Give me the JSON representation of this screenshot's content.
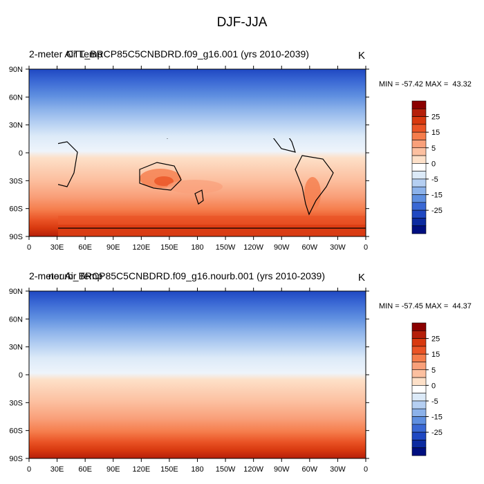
{
  "title": "DJF-JJA",
  "x_ticks": [
    "0",
    "30E",
    "60E",
    "90E",
    "120E",
    "150E",
    "180",
    "150W",
    "120W",
    "90W",
    "60W",
    "30W",
    "0"
  ],
  "y_ticks": [
    "90N",
    "60N",
    "30N",
    "0",
    "30S",
    "60S",
    "90S"
  ],
  "colorbar_labels": [
    "25",
    "15",
    "5",
    "0",
    "-5",
    "-15",
    "-25"
  ],
  "colorbar_colors": [
    "#8b0000",
    "#b51f0a",
    "#d8390f",
    "#ea5426",
    "#f57d4c",
    "#f9a07a",
    "#fcc0a0",
    "#fde0c8",
    "#ffffff",
    "#dceaf8",
    "#b5cff2",
    "#8cb2ea",
    "#5f8fe0",
    "#3a68d4",
    "#1f48c2",
    "#0c2ba0",
    "#000f80"
  ],
  "panels": [
    {
      "left_title": "2-meter Air Temp",
      "right_title": "CTL_BRCP85C5CNBDRD.f09_g16.001 (yrs 2010-2039)",
      "units": "K",
      "stats": "MIN = -57.42 MAX =  43.32"
    },
    {
      "left_title": "2-meter Air Temp",
      "right_title": "nourb_BRCP85C5CNBDRD.f09_g16.nourb.001 (yrs 2010-2039)",
      "units": "K",
      "stats": "MIN = -57.45 MAX =  44.37"
    }
  ]
}
